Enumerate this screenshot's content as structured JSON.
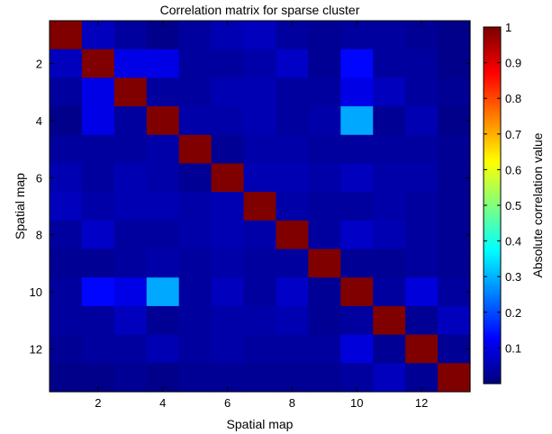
{
  "chart_data": {
    "type": "heatmap",
    "title": "Correlation matrix for sparse cluster",
    "xlabel": "Spatial map",
    "ylabel": "Spatial map",
    "colorbar_label": "Absolute correlation value",
    "colormap": "jet",
    "n": 13,
    "x_ticks": [
      2,
      4,
      6,
      8,
      10,
      12
    ],
    "y_ticks": [
      2,
      4,
      6,
      8,
      10,
      12
    ],
    "colorbar_range": [
      0.0,
      1.0
    ],
    "colorbar_ticks": [
      "0.1",
      "0.2",
      "0.3",
      "0.4",
      "0.5",
      "0.6",
      "0.7",
      "0.8",
      "0.9",
      "1"
    ],
    "colorbar_tick_values": [
      0.1,
      0.2,
      0.3,
      0.4,
      0.5,
      0.6,
      0.7,
      0.8,
      0.9,
      1.0
    ],
    "matrix": [
      [
        1.0,
        0.06,
        0.03,
        0.01,
        0.03,
        0.05,
        0.06,
        0.03,
        0.02,
        0.03,
        0.03,
        0.02,
        0.01
      ],
      [
        0.06,
        1.0,
        0.1,
        0.1,
        0.03,
        0.03,
        0.04,
        0.07,
        0.02,
        0.13,
        0.03,
        0.03,
        0.01
      ],
      [
        0.03,
        0.1,
        1.0,
        0.03,
        0.03,
        0.05,
        0.05,
        0.03,
        0.03,
        0.1,
        0.06,
        0.03,
        0.02
      ],
      [
        0.01,
        0.1,
        0.03,
        1.0,
        0.04,
        0.04,
        0.05,
        0.03,
        0.04,
        0.29,
        0.02,
        0.05,
        0.01
      ],
      [
        0.03,
        0.03,
        0.03,
        0.04,
        1.0,
        0.02,
        0.04,
        0.04,
        0.03,
        0.03,
        0.03,
        0.03,
        0.02
      ],
      [
        0.05,
        0.03,
        0.05,
        0.04,
        0.02,
        1.0,
        0.05,
        0.05,
        0.04,
        0.06,
        0.04,
        0.04,
        0.02
      ],
      [
        0.06,
        0.04,
        0.05,
        0.05,
        0.04,
        0.05,
        1.0,
        0.04,
        0.03,
        0.03,
        0.04,
        0.03,
        0.02
      ],
      [
        0.03,
        0.07,
        0.03,
        0.03,
        0.04,
        0.05,
        0.04,
        1.0,
        0.03,
        0.07,
        0.05,
        0.03,
        0.02
      ],
      [
        0.02,
        0.02,
        0.03,
        0.04,
        0.03,
        0.04,
        0.03,
        0.03,
        1.0,
        0.02,
        0.02,
        0.03,
        0.02
      ],
      [
        0.03,
        0.13,
        0.1,
        0.29,
        0.03,
        0.06,
        0.03,
        0.07,
        0.02,
        1.0,
        0.03,
        0.09,
        0.03
      ],
      [
        0.03,
        0.03,
        0.06,
        0.02,
        0.03,
        0.04,
        0.04,
        0.05,
        0.02,
        0.03,
        1.0,
        0.02,
        0.06
      ],
      [
        0.02,
        0.03,
        0.03,
        0.05,
        0.03,
        0.04,
        0.03,
        0.03,
        0.03,
        0.09,
        0.02,
        1.0,
        0.02
      ],
      [
        0.01,
        0.01,
        0.02,
        0.01,
        0.02,
        0.02,
        0.02,
        0.02,
        0.02,
        0.03,
        0.06,
        0.02,
        1.0
      ]
    ]
  }
}
